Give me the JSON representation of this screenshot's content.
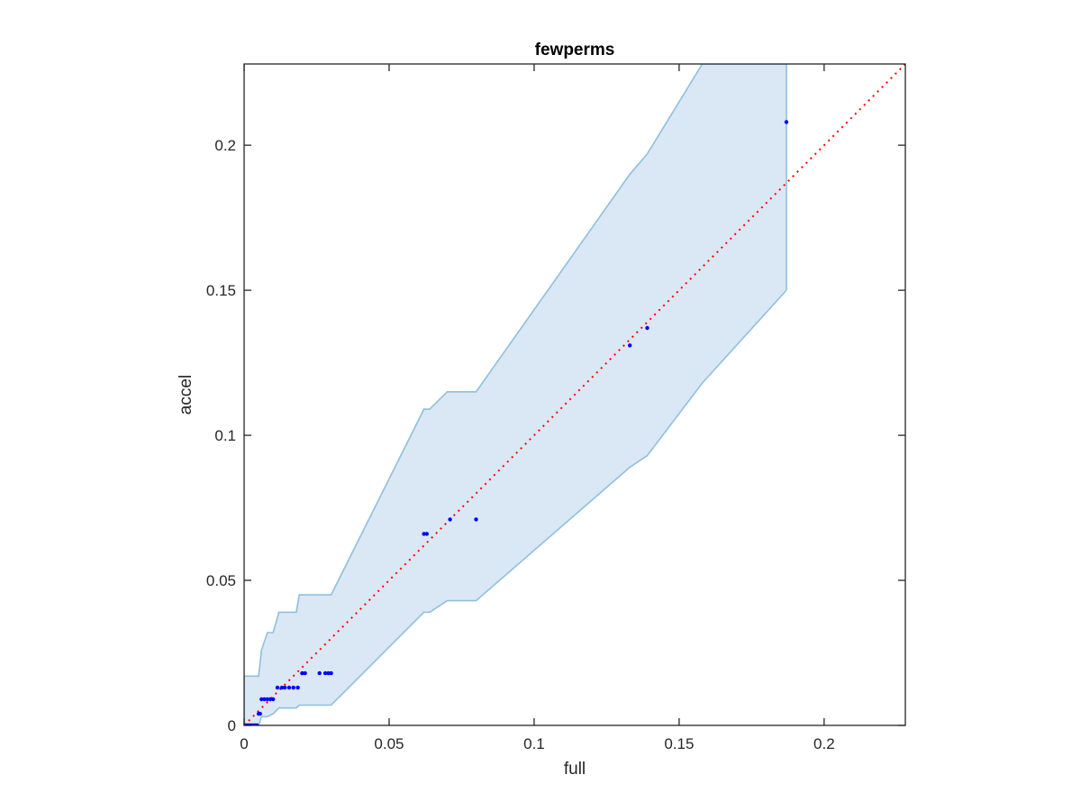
{
  "chart_data": {
    "type": "scatter",
    "title": "fewperms",
    "xlabel": "full",
    "ylabel": "accel",
    "xlim": [
      0,
      0.228
    ],
    "ylim": [
      0,
      0.228
    ],
    "xticks": [
      0,
      0.05,
      0.1,
      0.15,
      0.2
    ],
    "yticks": [
      0,
      0.05,
      0.1,
      0.15,
      0.2
    ],
    "xtick_labels": [
      "0",
      "0.05",
      "0.1",
      "0.15",
      "0.2"
    ],
    "ytick_labels": [
      "0",
      "0.05",
      "0.1",
      "0.15",
      "0.2"
    ],
    "grid": false,
    "colors": {
      "points": "#0000ff",
      "reference_line": "#ff0000",
      "band_fill": "#d9e8f4",
      "band_edge": "#8fbfdf",
      "axes": "#262626"
    },
    "series": [
      {
        "kind": "points",
        "x": [
          0.0002,
          0.0005,
          0.001,
          0.0015,
          0.002,
          0.0025,
          0.003,
          0.0035,
          0.004,
          0.0045,
          0.005,
          0.0055,
          0.006,
          0.007,
          0.008,
          0.009,
          0.01,
          0.0115,
          0.013,
          0.014,
          0.0155,
          0.017,
          0.0185,
          0.02,
          0.021,
          0.026,
          0.028,
          0.029,
          0.03,
          0.062,
          0.063,
          0.071,
          0.08,
          0.133,
          0.139,
          0.187
        ],
        "y": [
          0,
          0,
          0,
          0,
          0,
          0,
          0,
          0,
          0,
          0,
          0.004,
          0.004,
          0.009,
          0.009,
          0.009,
          0.009,
          0.009,
          0.013,
          0.013,
          0.013,
          0.013,
          0.013,
          0.013,
          0.018,
          0.018,
          0.018,
          0.018,
          0.018,
          0.018,
          0.066,
          0.066,
          0.071,
          0.071,
          0.131,
          0.137,
          0.208
        ]
      },
      {
        "kind": "reference_line",
        "x": [
          0,
          0.228
        ],
        "y": [
          0,
          0.228
        ]
      },
      {
        "kind": "band",
        "x": [
          0,
          0.005,
          0.006,
          0.008,
          0.01,
          0.012,
          0.018,
          0.019,
          0.03,
          0.062,
          0.064,
          0.07,
          0.08,
          0.133,
          0.139,
          0.158,
          0.187
        ],
        "upper": [
          0.017,
          0.017,
          0.026,
          0.032,
          0.032,
          0.039,
          0.039,
          0.045,
          0.045,
          0.109,
          0.109,
          0.115,
          0.115,
          0.19,
          0.197,
          0.228,
          0.228
        ],
        "lower": [
          0,
          0,
          0.003,
          0.003,
          0.004,
          0.006,
          0.006,
          0.007,
          0.007,
          0.039,
          0.039,
          0.043,
          0.043,
          0.089,
          0.093,
          0.118,
          0.15
        ]
      }
    ]
  }
}
